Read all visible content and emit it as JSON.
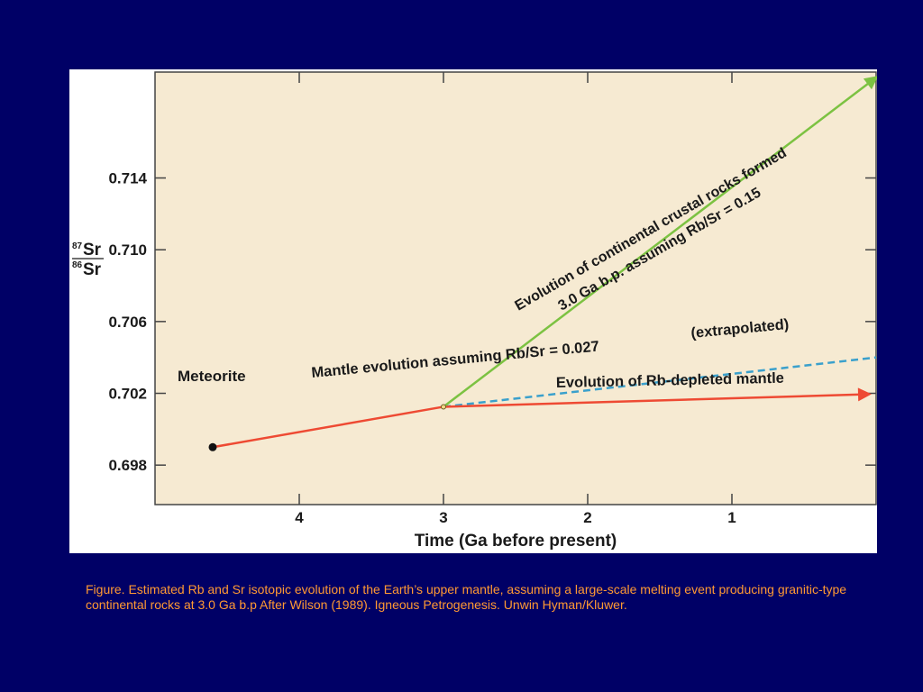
{
  "chart_data": {
    "type": "line",
    "xlabel": "Time (Ga before present)",
    "ylabel": {
      "num_sup": "87",
      "num": "Sr",
      "den_sup": "86",
      "den": "Sr"
    },
    "x_ticks": [
      "4",
      "3",
      "2",
      "1"
    ],
    "x_tick_values": [
      4,
      3,
      2,
      1
    ],
    "y_ticks": [
      "0.714",
      "0.710",
      "0.706",
      "0.702",
      "0.698"
    ],
    "y_tick_values": [
      0.714,
      0.71,
      0.706,
      0.702,
      0.698
    ],
    "xlim": [
      5,
      0
    ],
    "ylim": [
      0.6958,
      0.7199
    ],
    "grid": false,
    "colors": {
      "plot_bg": "#f6ead2",
      "panel_bg": "#ffffff",
      "mantle": "#ee4a33",
      "crust": "#7cc242",
      "extrapolated": "#3aa0cc",
      "axis": "#444444"
    },
    "series": [
      {
        "key": "mantle",
        "x": [
          4.6,
          3.0
        ],
        "y": [
          0.699,
          0.70125
        ]
      },
      {
        "key": "depleted",
        "x": [
          3.0,
          0.05
        ],
        "y": [
          0.70125,
          0.70195
        ]
      },
      {
        "key": "extrapolated",
        "x": [
          3.0,
          0.0
        ],
        "y": [
          0.70125,
          0.704
        ]
      },
      {
        "key": "crust",
        "x": [
          3.0,
          0.0
        ],
        "y": [
          0.70125,
          0.7196
        ]
      }
    ],
    "points": [
      {
        "key": "meteorite",
        "x": 4.6,
        "y": 0.699
      },
      {
        "key": "branch_point",
        "x": 3.0,
        "y": 0.70125
      }
    ],
    "annotations": {
      "meteorite": "Meteorite",
      "mantle_evolution": "Mantle evolution assuming Rb/Sr = 0.027",
      "extrapolated": "(extrapolated)",
      "depleted": "Evolution of Rb-depleted mantle",
      "crust_line1": "Evolution of continental crustal rocks formed",
      "crust_line2": "3.0 Ga b.p. assuming Rb/Sr = 0.15"
    }
  },
  "caption": "Figure. Estimated Rb and Sr isotopic evolution of the Earth’s upper mantle, assuming a large-scale melting event producing granitic-type continental rocks at 3.0 Ga b.p After Wilson (1989). Igneous Petrogenesis. Unwin Hyman/Kluwer."
}
